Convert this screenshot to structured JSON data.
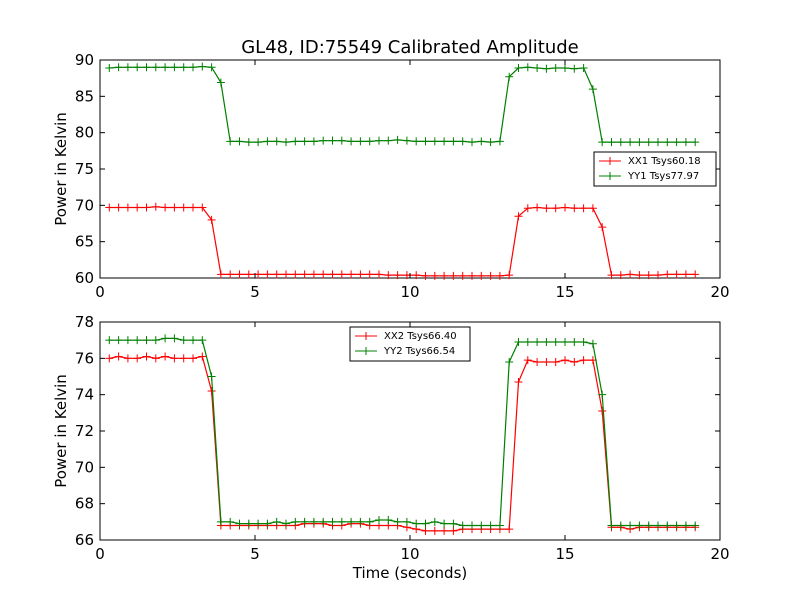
{
  "chart_data": [
    {
      "type": "line",
      "title": "GL48, ID:75549 Calibrated Amplitude",
      "xlabel": "",
      "ylabel": "Power in Kelvin",
      "xlim": [
        0,
        20
      ],
      "ylim": [
        60,
        90
      ],
      "x_ticks": [
        "0",
        "5",
        "10",
        "15",
        "20"
      ],
      "y_ticks": [
        "60",
        "65",
        "70",
        "75",
        "80",
        "85",
        "90"
      ],
      "legend_position": "center-right",
      "x": [
        0.3,
        0.6,
        0.9,
        1.2,
        1.5,
        1.8,
        2.1,
        2.4,
        2.7,
        3.0,
        3.3,
        3.6,
        3.9,
        4.2,
        4.5,
        4.8,
        5.1,
        5.4,
        5.7,
        6.0,
        6.3,
        6.6,
        6.9,
        7.2,
        7.5,
        7.8,
        8.1,
        8.4,
        8.7,
        9.0,
        9.3,
        9.6,
        9.9,
        10.2,
        10.5,
        10.8,
        11.1,
        11.4,
        11.7,
        12.0,
        12.3,
        12.6,
        12.9,
        13.2,
        13.5,
        13.8,
        14.1,
        14.4,
        14.7,
        15.0,
        15.3,
        15.6,
        15.9,
        16.2,
        16.5,
        16.8,
        17.1,
        17.4,
        17.7,
        18.0,
        18.3,
        18.6,
        18.9,
        19.2
      ],
      "series": [
        {
          "name": "XX1 Tsys60.18",
          "color": "#ff0000",
          "values": [
            69.7,
            69.7,
            69.7,
            69.7,
            69.7,
            69.8,
            69.7,
            69.7,
            69.7,
            69.7,
            69.7,
            68.0,
            60.5,
            60.5,
            60.5,
            60.5,
            60.5,
            60.5,
            60.5,
            60.5,
            60.5,
            60.5,
            60.5,
            60.5,
            60.5,
            60.5,
            60.5,
            60.5,
            60.5,
            60.5,
            60.4,
            60.4,
            60.4,
            60.4,
            60.3,
            60.3,
            60.3,
            60.3,
            60.3,
            60.3,
            60.3,
            60.3,
            60.3,
            60.4,
            68.5,
            69.6,
            69.7,
            69.6,
            69.6,
            69.7,
            69.6,
            69.6,
            69.6,
            67.0,
            60.4,
            60.4,
            60.5,
            60.4,
            60.4,
            60.4,
            60.5,
            60.5,
            60.5,
            60.5
          ]
        },
        {
          "name": "YY1 Tsys77.97",
          "color": "#008000",
          "values": [
            88.9,
            89.0,
            89.0,
            89.0,
            89.0,
            89.0,
            89.0,
            89.0,
            89.0,
            89.0,
            89.1,
            89.0,
            86.9,
            78.8,
            78.8,
            78.7,
            78.7,
            78.8,
            78.8,
            78.7,
            78.8,
            78.8,
            78.8,
            78.9,
            78.9,
            78.9,
            78.8,
            78.8,
            78.8,
            78.9,
            78.9,
            79.0,
            78.9,
            78.8,
            78.8,
            78.8,
            78.8,
            78.8,
            78.8,
            78.7,
            78.8,
            78.7,
            78.8,
            87.7,
            88.9,
            89.0,
            88.9,
            88.8,
            88.9,
            88.9,
            88.8,
            88.9,
            86.0,
            78.7,
            78.7,
            78.7,
            78.7,
            78.7,
            78.7,
            78.7,
            78.7,
            78.7,
            78.7,
            78.7
          ]
        }
      ]
    },
    {
      "type": "line",
      "title": "",
      "xlabel": "Time (seconds)",
      "ylabel": "Power in Kelvin",
      "xlim": [
        0,
        20
      ],
      "ylim": [
        66,
        78
      ],
      "x_ticks": [
        "0",
        "5",
        "10",
        "15",
        "20"
      ],
      "y_ticks": [
        "66",
        "68",
        "70",
        "72",
        "74",
        "76",
        "78"
      ],
      "legend_position": "top-center",
      "x": [
        0.3,
        0.6,
        0.9,
        1.2,
        1.5,
        1.8,
        2.1,
        2.4,
        2.7,
        3.0,
        3.3,
        3.6,
        3.9,
        4.2,
        4.5,
        4.8,
        5.1,
        5.4,
        5.7,
        6.0,
        6.3,
        6.6,
        6.9,
        7.2,
        7.5,
        7.8,
        8.1,
        8.4,
        8.7,
        9.0,
        9.3,
        9.6,
        9.9,
        10.2,
        10.5,
        10.8,
        11.1,
        11.4,
        11.7,
        12.0,
        12.3,
        12.6,
        12.9,
        13.2,
        13.5,
        13.8,
        14.1,
        14.4,
        14.7,
        15.0,
        15.3,
        15.6,
        15.9,
        16.2,
        16.5,
        16.8,
        17.1,
        17.4,
        17.7,
        18.0,
        18.3,
        18.6,
        18.9,
        19.2
      ],
      "series": [
        {
          "name": "XX2 Tsys66.40",
          "color": "#ff0000",
          "values": [
            76.0,
            76.1,
            76.0,
            76.0,
            76.1,
            76.0,
            76.1,
            76.0,
            76.0,
            76.0,
            76.1,
            74.2,
            66.8,
            66.8,
            66.8,
            66.8,
            66.8,
            66.8,
            66.8,
            66.8,
            66.8,
            66.9,
            66.9,
            66.9,
            66.8,
            66.8,
            66.9,
            66.9,
            66.8,
            66.8,
            66.8,
            66.8,
            66.7,
            66.6,
            66.5,
            66.5,
            66.5,
            66.5,
            66.6,
            66.6,
            66.6,
            66.6,
            66.6,
            66.6,
            74.7,
            75.9,
            75.8,
            75.8,
            75.8,
            75.9,
            75.8,
            75.9,
            75.9,
            73.1,
            66.7,
            66.7,
            66.6,
            66.7,
            66.7,
            66.7,
            66.7,
            66.7,
            66.7,
            66.7
          ]
        },
        {
          "name": "YY2 Tsys66.54",
          "color": "#008000",
          "values": [
            77.0,
            77.0,
            77.0,
            77.0,
            77.0,
            77.0,
            77.1,
            77.1,
            77.0,
            77.0,
            77.0,
            75.0,
            67.0,
            67.0,
            66.9,
            66.9,
            66.9,
            66.9,
            67.0,
            66.9,
            67.0,
            67.0,
            67.0,
            67.0,
            67.0,
            67.0,
            67.0,
            67.0,
            67.0,
            67.1,
            67.1,
            67.0,
            67.0,
            66.9,
            66.9,
            67.0,
            66.9,
            66.9,
            66.8,
            66.8,
            66.8,
            66.8,
            66.8,
            75.8,
            76.9,
            76.9,
            76.9,
            76.9,
            76.9,
            76.9,
            76.9,
            76.9,
            76.8,
            74.0,
            66.8,
            66.8,
            66.8,
            66.8,
            66.8,
            66.8,
            66.8,
            66.8,
            66.8,
            66.8
          ]
        }
      ]
    }
  ]
}
